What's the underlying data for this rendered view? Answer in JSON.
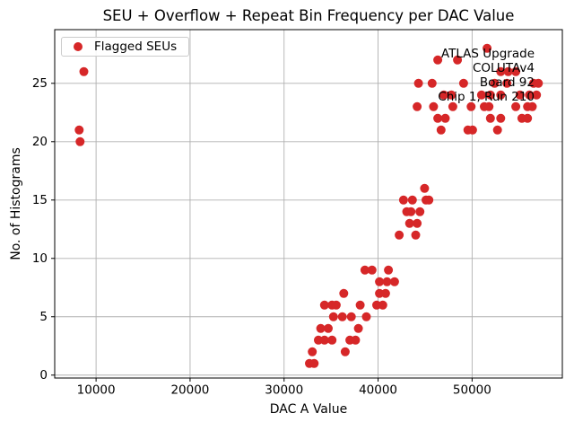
{
  "chart_data": {
    "type": "scatter",
    "title": "SEU + Overflow + Repeat Bin Frequency per DAC Value",
    "xlabel": "DAC A Value",
    "ylabel": "No. of Histograms",
    "xlim": [
      5600,
      59600
    ],
    "ylim": [
      -0.25,
      29.6
    ],
    "xticks": [
      10000,
      20000,
      30000,
      40000,
      50000
    ],
    "yticks": [
      0,
      5,
      10,
      15,
      20,
      25
    ],
    "grid": true,
    "legend": {
      "label": "Flagged SEUs",
      "position": "upper left",
      "marker_color": "#d62728"
    },
    "annotation": {
      "align": "right",
      "lines": [
        "ATLAS Upgrade",
        "COLUTAv4",
        "Board 92",
        "Chip 1, Run 210"
      ]
    },
    "series": [
      {
        "name": "Flagged SEUs",
        "color": "#d62728",
        "marker": "circle",
        "points": [
          [
            8200,
            21
          ],
          [
            8300,
            20
          ],
          [
            8700,
            26
          ],
          [
            32700,
            1
          ],
          [
            33200,
            1
          ],
          [
            33000,
            2
          ],
          [
            36500,
            2
          ],
          [
            33650,
            3
          ],
          [
            34300,
            3
          ],
          [
            35100,
            3
          ],
          [
            37000,
            3
          ],
          [
            37600,
            3
          ],
          [
            33900,
            4
          ],
          [
            34700,
            4
          ],
          [
            37900,
            4
          ],
          [
            35250,
            5
          ],
          [
            36200,
            5
          ],
          [
            37150,
            5
          ],
          [
            38750,
            5
          ],
          [
            34300,
            6
          ],
          [
            35100,
            6
          ],
          [
            35550,
            6
          ],
          [
            38100,
            6
          ],
          [
            39850,
            6
          ],
          [
            40500,
            6
          ],
          [
            36350,
            7
          ],
          [
            40150,
            7
          ],
          [
            40800,
            7
          ],
          [
            40150,
            8
          ],
          [
            40950,
            8
          ],
          [
            41750,
            8
          ],
          [
            38600,
            9
          ],
          [
            39350,
            9
          ],
          [
            41100,
            9
          ],
          [
            42250,
            12
          ],
          [
            44000,
            12
          ],
          [
            43350,
            13
          ],
          [
            44150,
            13
          ],
          [
            43050,
            14
          ],
          [
            43500,
            14
          ],
          [
            44450,
            14
          ],
          [
            42700,
            15
          ],
          [
            43650,
            15
          ],
          [
            45100,
            15
          ],
          [
            45400,
            15
          ],
          [
            44950,
            16
          ],
          [
            46700,
            21
          ],
          [
            49550,
            21
          ],
          [
            50050,
            21
          ],
          [
            52700,
            21
          ],
          [
            46350,
            22
          ],
          [
            47150,
            22
          ],
          [
            51950,
            22
          ],
          [
            53050,
            22
          ],
          [
            55300,
            22
          ],
          [
            55900,
            22
          ],
          [
            44150,
            23
          ],
          [
            45900,
            23
          ],
          [
            47950,
            23
          ],
          [
            49900,
            23
          ],
          [
            51300,
            23
          ],
          [
            51800,
            23
          ],
          [
            54650,
            23
          ],
          [
            55900,
            23
          ],
          [
            56400,
            23
          ],
          [
            47000,
            24
          ],
          [
            47800,
            24
          ],
          [
            51000,
            24
          ],
          [
            51950,
            24
          ],
          [
            53050,
            24
          ],
          [
            55100,
            24
          ],
          [
            56100,
            24
          ],
          [
            56850,
            24
          ],
          [
            44300,
            25
          ],
          [
            45750,
            25
          ],
          [
            49100,
            25
          ],
          [
            52400,
            25
          ],
          [
            53700,
            25
          ],
          [
            56550,
            25
          ],
          [
            57050,
            25
          ],
          [
            53050,
            26
          ],
          [
            53850,
            26
          ],
          [
            54650,
            26
          ],
          [
            46350,
            27
          ],
          [
            48450,
            27
          ],
          [
            51600,
            28
          ]
        ]
      }
    ]
  },
  "colors": {
    "marker": "#d62728",
    "grid": "#b0b0b0",
    "spine": "#000000",
    "text": "#000000",
    "background": "#ffffff",
    "legend_border": "#cccccc"
  }
}
